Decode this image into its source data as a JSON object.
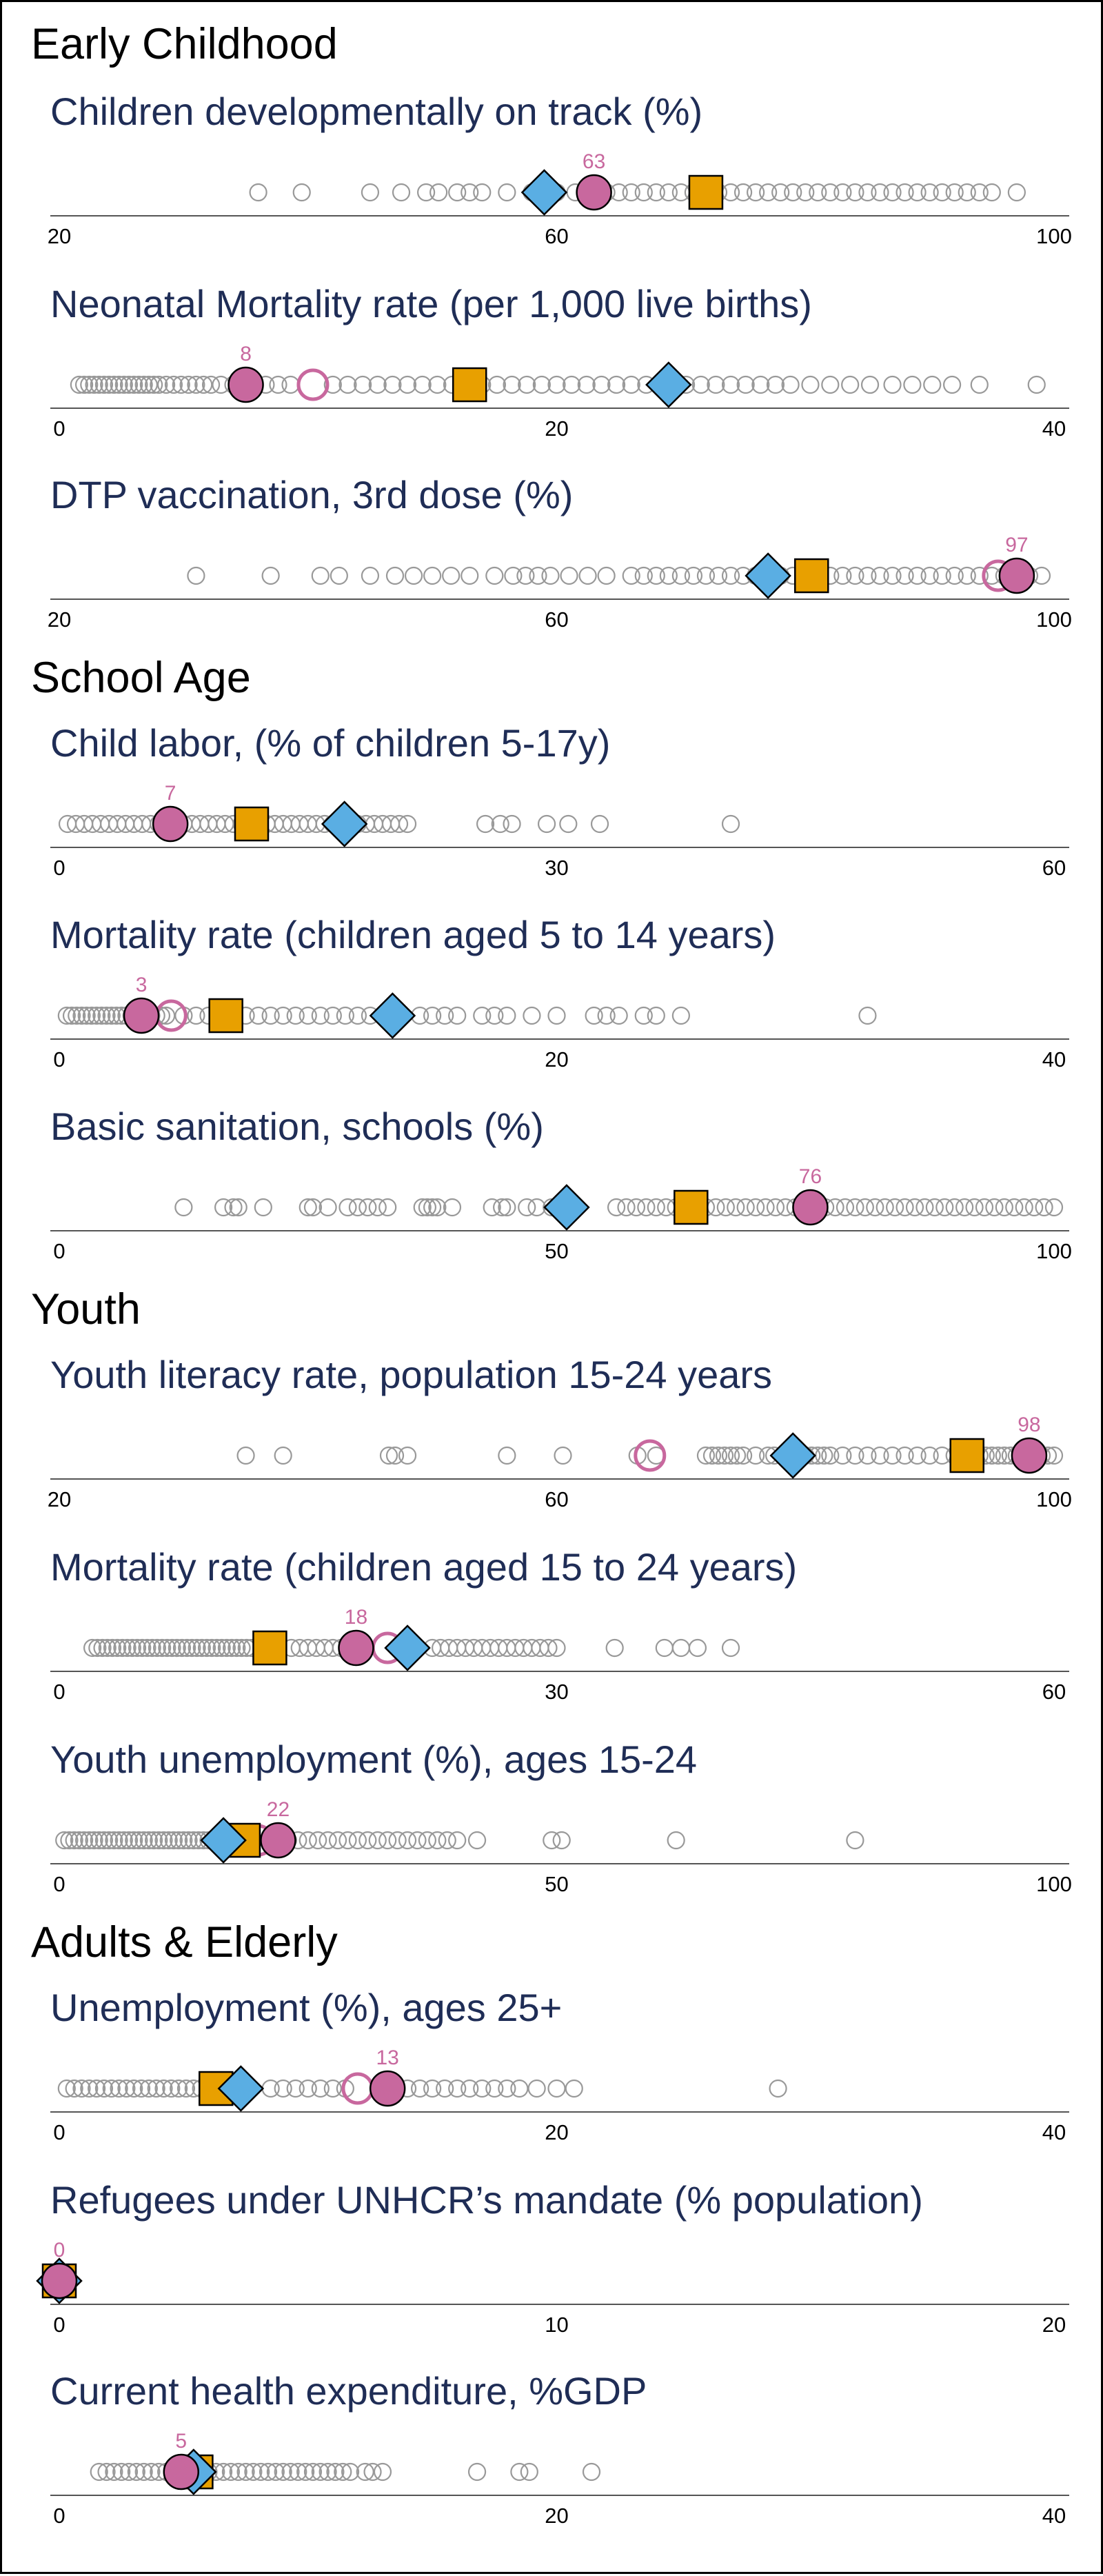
{
  "colors": {
    "background": "#ffffff",
    "title": "#1f2d56",
    "other_country_marker": "#999999",
    "country": "#c8689e",
    "region_average": "#5aaee3",
    "income_group_average": "#e8a000",
    "axis": "#555555"
  },
  "chart_data": [
    {
      "type": "scatter",
      "section": "Early Childhood",
      "title": "Children developmentally on track (%)",
      "xlim": [
        20,
        100
      ],
      "ticks": [
        20,
        60,
        100
      ],
      "country_value": 63,
      "country_label": "63",
      "past_value": null,
      "region_value": 59,
      "income_value": 72,
      "others": [
        36,
        39.5,
        45,
        47.5,
        49.5,
        50.5,
        52,
        53,
        54,
        56,
        58,
        60,
        61.5,
        63,
        64,
        65,
        66,
        67,
        68,
        69,
        70,
        71,
        72,
        73,
        74,
        75,
        76,
        77,
        78,
        79,
        80,
        81,
        82,
        83,
        84,
        85,
        86,
        87,
        88,
        89,
        90,
        91,
        92,
        93,
        94,
        95,
        97
      ]
    },
    {
      "type": "scatter",
      "section": "Early Childhood",
      "title": "Neonatal Mortality rate (per 1,000 live births)",
      "xlim": [
        0,
        40
      ],
      "ticks": [
        0,
        20,
        40
      ],
      "country_value": 7.5,
      "country_label": "8",
      "past_value": 10.2,
      "region_value": 24.5,
      "income_value": 16.5,
      "others": [
        0.8,
        1,
        1.2,
        1.4,
        1.6,
        1.8,
        2,
        2.2,
        2.4,
        2.6,
        2.8,
        3,
        3.2,
        3.4,
        3.6,
        3.8,
        4,
        4.3,
        4.6,
        4.9,
        5.2,
        5.5,
        5.8,
        6.1,
        6.5,
        7,
        8.3,
        8.8,
        9.3,
        11,
        11.6,
        12.2,
        12.8,
        13.4,
        14,
        14.6,
        15.2,
        15.8,
        16.4,
        17,
        17.6,
        18.2,
        18.8,
        19.4,
        20,
        20.6,
        21.2,
        21.8,
        22.4,
        23,
        23.6,
        24.2,
        25.2,
        25.8,
        26.4,
        27,
        27.6,
        28.2,
        28.8,
        29.4,
        30.2,
        31,
        31.8,
        32.6,
        33.5,
        34.3,
        35.1,
        35.9,
        37,
        39.3
      ]
    },
    {
      "type": "scatter",
      "section": "Early Childhood",
      "title": "DTP vaccination, 3rd dose (%)",
      "xlim": [
        20,
        100
      ],
      "ticks": [
        20,
        60,
        100
      ],
      "country_value": 97,
      "country_label": "97",
      "past_value": 95.5,
      "region_value": 77,
      "income_value": 80.5,
      "others": [
        31,
        37,
        41,
        42.5,
        45,
        47,
        48.5,
        50,
        51.5,
        53,
        55,
        56.5,
        57.5,
        58.5,
        59.5,
        61,
        62.5,
        64,
        66,
        67,
        68,
        69,
        70,
        71,
        72,
        73,
        74,
        75,
        76,
        78,
        79,
        80,
        82,
        83,
        84,
        85,
        86,
        87,
        88,
        89,
        90,
        91,
        92,
        93,
        94,
        95,
        96,
        97,
        98,
        99
      ]
    },
    {
      "type": "scatter",
      "section": "School Age",
      "title": "Child labor, (% of children 5-17y)",
      "xlim": [
        0,
        60
      ],
      "ticks": [
        0,
        30,
        60
      ],
      "country_value": 6.7,
      "country_label": "7",
      "past_value": null,
      "region_value": 17.2,
      "income_value": 11.6,
      "others": [
        0.5,
        1,
        1.5,
        2,
        2.5,
        3,
        3.5,
        4,
        4.5,
        5,
        5.5,
        6,
        6.5,
        7.5,
        8,
        8.5,
        9,
        9.5,
        10,
        10.5,
        11,
        12.5,
        13,
        13.5,
        14,
        14.5,
        15,
        15.5,
        16,
        16.5,
        17,
        18,
        18.5,
        19,
        19.5,
        20,
        20.5,
        21,
        25.7,
        26.6,
        27.3,
        29.4,
        30.7,
        32.6,
        40.5
      ]
    },
    {
      "type": "scatter",
      "section": "School Age",
      "title": "Mortality rate (children aged 5 to 14 years)",
      "xlim": [
        0,
        40
      ],
      "ticks": [
        0,
        20,
        40
      ],
      "country_value": 3.3,
      "country_label": "3",
      "past_value": 4.5,
      "region_value": 13.4,
      "income_value": 6.7,
      "others": [
        0.3,
        0.5,
        0.7,
        0.9,
        1.1,
        1.3,
        1.5,
        1.7,
        1.9,
        2.1,
        2.3,
        2.5,
        2.7,
        2.9,
        3.1,
        3.5,
        3.7,
        3.9,
        4.1,
        4.3,
        5,
        5.5,
        6,
        7.5,
        8,
        8.5,
        9,
        9.5,
        10,
        10.5,
        11,
        11.5,
        12,
        12.5,
        14.5,
        15,
        15.5,
        16,
        17,
        17.5,
        18,
        19,
        20,
        21.5,
        22,
        22.5,
        23.5,
        24,
        25,
        32.5
      ]
    },
    {
      "type": "scatter",
      "section": "School Age",
      "title": "Basic sanitation, schools (%)",
      "xlim": [
        0,
        100
      ],
      "ticks": [
        0,
        50,
        100
      ],
      "country_value": 75.5,
      "country_label": "76",
      "past_value": 75.5,
      "region_value": 51,
      "income_value": 63.5,
      "others": [
        12.5,
        16.5,
        17.5,
        18,
        20.5,
        25,
        25.5,
        27,
        29,
        30,
        31,
        32,
        33,
        36.5,
        37,
        37.5,
        38,
        39.5,
        43.5,
        44.5,
        45,
        47,
        48,
        49.5,
        51.5,
        52,
        56,
        57,
        58,
        59,
        60,
        61,
        62,
        65,
        66,
        67,
        68,
        69,
        70,
        71,
        72,
        73,
        74,
        76,
        77,
        78,
        79,
        80,
        81,
        82,
        83,
        84,
        85,
        86,
        87,
        88,
        89,
        90,
        91,
        92,
        93,
        94,
        95,
        96,
        97,
        98,
        99,
        100
      ]
    },
    {
      "type": "scatter",
      "section": "Youth",
      "title": "Youth literacy rate, population 15-24 years",
      "xlim": [
        20,
        100
      ],
      "ticks": [
        20,
        60,
        100
      ],
      "country_value": 98,
      "country_label": "98",
      "past_value": 67.5,
      "region_value": 79,
      "income_value": 93,
      "others": [
        35,
        38,
        46.5,
        47,
        48,
        56,
        60.5,
        66.5,
        68,
        72,
        72.5,
        73,
        73.5,
        74,
        74.5,
        75,
        76,
        77,
        77.5,
        80,
        80.5,
        81,
        81.5,
        82,
        83,
        84,
        85,
        86,
        87,
        88,
        89,
        90,
        91,
        92,
        93.5,
        94,
        94.5,
        95,
        95.5,
        96,
        96.5,
        97,
        97.5,
        98.5,
        99,
        99.5,
        100
      ]
    },
    {
      "type": "scatter",
      "section": "Youth",
      "title": "Mortality rate (children aged 15 to 24 years)",
      "xlim": [
        0,
        60
      ],
      "ticks": [
        0,
        30,
        60
      ],
      "country_value": 17.9,
      "country_label": "18",
      "past_value": 19.8,
      "region_value": 21,
      "income_value": 12.7,
      "others": [
        2,
        2.3,
        2.6,
        2.9,
        3.2,
        3.5,
        3.8,
        4.1,
        4.4,
        4.7,
        5,
        5.3,
        5.6,
        5.9,
        6.2,
        6.5,
        6.8,
        7.1,
        7.4,
        7.7,
        8,
        8.3,
        8.6,
        8.9,
        9.2,
        9.5,
        9.8,
        10.1,
        10.4,
        10.7,
        11,
        11.3,
        11.6,
        14,
        14.5,
        15,
        15.5,
        16,
        16.5,
        17,
        22.5,
        23,
        23.5,
        24,
        24.5,
        25,
        25.5,
        26,
        26.5,
        27,
        27.5,
        28,
        28.5,
        29,
        29.5,
        30,
        33.5,
        36.5,
        37.5,
        38.5,
        40.5
      ]
    },
    {
      "type": "scatter",
      "section": "Youth",
      "title": "Youth unemployment (%), ages 15-24",
      "xlim": [
        0,
        100
      ],
      "ticks": [
        0,
        50,
        100
      ],
      "country_value": 22,
      "country_label": "22",
      "past_value": 20,
      "region_value": 16.5,
      "income_value": 18.5,
      "others": [
        0.5,
        1,
        1.5,
        2,
        2.5,
        3,
        3.5,
        4,
        4.5,
        5,
        5.5,
        6,
        6.5,
        7,
        7.5,
        8,
        8.5,
        9,
        9.5,
        10,
        10.5,
        11,
        11.5,
        12,
        12.5,
        13,
        13.5,
        14,
        14.5,
        15,
        15.5,
        16,
        17,
        19,
        21,
        23,
        24,
        25,
        26,
        27,
        28,
        29,
        30,
        31,
        32,
        33,
        34,
        35,
        36,
        37,
        38,
        39,
        40,
        42,
        49.5,
        50.5,
        62,
        80
      ]
    },
    {
      "type": "scatter",
      "section": "Adults & Elderly",
      "title": "Unemployment (%), ages 25+",
      "xlim": [
        0,
        40
      ],
      "ticks": [
        0,
        20,
        40
      ],
      "country_value": 13.2,
      "country_label": "13",
      "past_value": 12,
      "region_value": 7.3,
      "income_value": 6.3,
      "others": [
        0.3,
        0.6,
        0.9,
        1.2,
        1.5,
        1.8,
        2.1,
        2.4,
        2.7,
        3,
        3.3,
        3.6,
        3.9,
        4.2,
        4.5,
        4.8,
        5.1,
        5.4,
        5.7,
        6,
        8.5,
        9,
        9.5,
        10,
        10.5,
        11,
        11.5,
        14,
        14.5,
        15,
        15.5,
        16,
        16.5,
        17,
        17.5,
        18,
        18.5,
        19.2,
        20,
        20.7,
        28.9
      ]
    },
    {
      "type": "scatter",
      "section": "Adults & Elderly",
      "title": "Refugees under UNHCR’s mandate (% population)",
      "xlim": [
        0,
        20
      ],
      "ticks": [
        0,
        10,
        20
      ],
      "country_value": 0,
      "country_label": "0",
      "past_value": null,
      "region_value": 0,
      "income_value": 0,
      "others": []
    },
    {
      "type": "scatter",
      "section": "Adults & Elderly",
      "title": "Current health expenditure, %GDP",
      "xlim": [
        0,
        40
      ],
      "ticks": [
        0,
        20,
        40
      ],
      "country_value": 4.9,
      "country_label": "5",
      "past_value": null,
      "region_value": 5.4,
      "income_value": 5.5,
      "others": [
        1.6,
        1.9,
        2.2,
        2.5,
        2.8,
        3.1,
        3.4,
        3.7,
        4,
        4.3,
        4.6,
        6,
        6.3,
        6.6,
        6.9,
        7.2,
        7.5,
        7.8,
        8.1,
        8.4,
        8.7,
        9,
        9.3,
        9.6,
        9.9,
        10.2,
        10.5,
        10.8,
        11.1,
        11.4,
        11.7,
        12.3,
        12.6,
        13,
        16.8,
        18.5,
        18.9,
        21.4
      ]
    }
  ]
}
